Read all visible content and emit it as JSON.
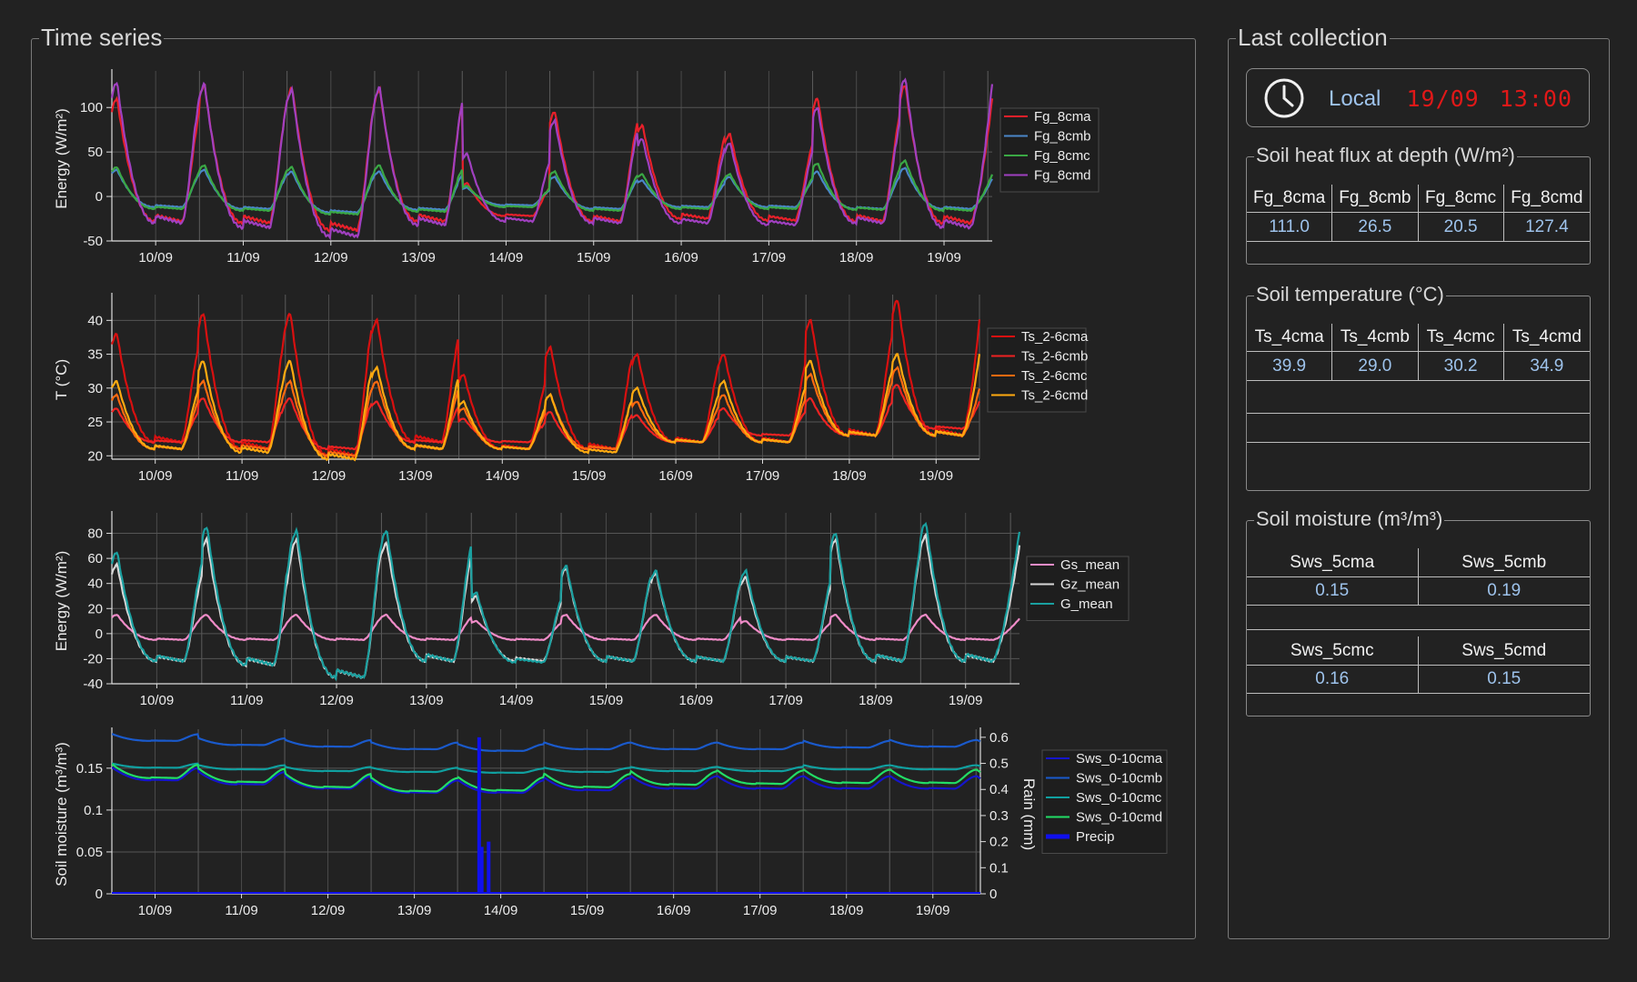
{
  "panels": {
    "time_series_title": "Time series",
    "last_collection_title": "Last collection"
  },
  "clock": {
    "label": "Local",
    "date": "19/09",
    "time": "13:00",
    "icon": "clock-icon"
  },
  "heat_flux": {
    "title": "Soil heat flux at depth (W/m²)",
    "headers": [
      "Fg_8cma",
      "Fg_8cmb",
      "Fg_8cmc",
      "Fg_8cmd"
    ],
    "values": [
      "111.0",
      "26.5",
      "20.5",
      "127.4"
    ]
  },
  "soil_temp": {
    "title": "Soil temperature (°C)",
    "headers": [
      "Ts_4cma",
      "Ts_4cmb",
      "Ts_4cmc",
      "Ts_4cmd"
    ],
    "values": [
      "39.9",
      "29.0",
      "30.2",
      "34.9"
    ]
  },
  "soil_moist": {
    "title": "Soil moisture (m³/m³)",
    "headers_a": [
      "Sws_5cma",
      "Sws_5cmb"
    ],
    "values_a": [
      "0.15",
      "0.19"
    ],
    "headers_b": [
      "Sws_5cmc",
      "Sws_5cmd"
    ],
    "values_b": [
      "0.16",
      "0.15"
    ]
  },
  "chart_data": [
    {
      "type": "line",
      "ylabel": "Energy (W/m²)",
      "ylim": [
        -50,
        135
      ],
      "yticks": [
        -50,
        0,
        50,
        100
      ],
      "x_ticks": [
        "10/09",
        "11/09",
        "12/09",
        "13/09",
        "14/09",
        "15/09",
        "16/09",
        "17/09",
        "18/09",
        "19/09"
      ],
      "x_range_days": [
        9.5,
        19.55
      ],
      "legend": "right",
      "series": [
        {
          "name": "Fg_8cma",
          "color": "#e8202a",
          "peaks": [
            110,
            125,
            122,
            120,
            15,
            95,
            80,
            70,
            110,
            125
          ],
          "troughs": [
            -28,
            -30,
            -38,
            -28,
            -22,
            -28,
            -25,
            -27,
            -28,
            -30
          ],
          "end": 110
        },
        {
          "name": "Fg_8cmb",
          "color": "#4a86c8",
          "peaks": [
            30,
            30,
            28,
            28,
            10,
            22,
            18,
            22,
            28,
            32
          ],
          "troughs": [
            -12,
            -14,
            -18,
            -15,
            -10,
            -14,
            -12,
            -12,
            -14,
            -14
          ],
          "end": 20
        },
        {
          "name": "Fg_8cmc",
          "color": "#3aa844",
          "peaks": [
            33,
            35,
            33,
            35,
            12,
            28,
            25,
            25,
            37,
            40
          ],
          "troughs": [
            -14,
            -16,
            -20,
            -17,
            -12,
            -16,
            -14,
            -14,
            -15,
            -16
          ],
          "end": 25
        },
        {
          "name": "Fg_8cmd",
          "color": "#a040c0",
          "peaks": [
            128,
            126,
            120,
            122,
            48,
            85,
            65,
            60,
            100,
            132
          ],
          "troughs": [
            -30,
            -35,
            -45,
            -32,
            -28,
            -30,
            -30,
            -32,
            -30,
            -35
          ],
          "end": 127
        }
      ]
    },
    {
      "type": "line",
      "ylabel": "T (°C)",
      "ylim": [
        19.5,
        43
      ],
      "yticks": [
        20,
        25,
        30,
        35,
        40
      ],
      "x_ticks": [
        "10/09",
        "11/09",
        "12/09",
        "13/09",
        "14/09",
        "15/09",
        "16/09",
        "17/09",
        "18/09",
        "19/09"
      ],
      "x_range_days": [
        9.5,
        19.5
      ],
      "legend": "right",
      "series": [
        {
          "name": "Ts_2-6cma",
          "color": "#d81010",
          "peaks": [
            38,
            41,
            41,
            40,
            32,
            36,
            35,
            35,
            40,
            43
          ],
          "troughs": [
            22,
            21,
            20,
            22,
            21,
            21,
            22,
            22,
            23,
            23
          ],
          "end": 40
        },
        {
          "name": "Ts_2-6cmb",
          "color": "#ee2222",
          "peaks": [
            27,
            28.5,
            28.5,
            28,
            25.5,
            26.5,
            26,
            27,
            28.5,
            30.5
          ],
          "troughs": [
            22,
            22,
            21,
            22,
            22,
            21,
            22,
            23,
            23,
            24
          ],
          "end": 28
        },
        {
          "name": "Ts_2-6cmc",
          "color": "#ff6a10",
          "peaks": [
            29,
            31,
            31,
            31,
            27,
            29,
            28,
            29,
            32,
            33
          ],
          "troughs": [
            21,
            21,
            20,
            21,
            21,
            21,
            22,
            22,
            23,
            23
          ],
          "end": 30
        },
        {
          "name": "Ts_2-6cmd",
          "color": "#ffaa10",
          "peaks": [
            31,
            34,
            34,
            33,
            28,
            29,
            30,
            31,
            34,
            35
          ],
          "troughs": [
            21,
            20.5,
            19.5,
            21,
            21,
            20.5,
            22,
            22,
            23,
            23
          ],
          "end": 35
        }
      ]
    },
    {
      "type": "line",
      "ylabel": "Energy (W/m²)",
      "ylim": [
        -40,
        92
      ],
      "yticks": [
        -40,
        -20,
        0,
        20,
        40,
        60,
        80
      ],
      "x_ticks": [
        "10/09",
        "11/09",
        "12/09",
        "13/09",
        "14/09",
        "15/09",
        "16/09",
        "17/09",
        "18/09",
        "19/09"
      ],
      "x_range_days": [
        9.5,
        19.6
      ],
      "legend": "right",
      "series": [
        {
          "name": "Gs_mean",
          "color": "#f08cc8",
          "peaks": [
            15,
            15,
            15,
            15,
            10,
            15,
            15,
            10,
            15,
            15
          ],
          "troughs": [
            -5,
            -5,
            -5,
            -5,
            -5,
            -5,
            -5,
            -5,
            -5,
            -5
          ],
          "end": 12
        },
        {
          "name": "Gz_mean",
          "color": "#d8d8d8",
          "peaks": [
            55,
            75,
            75,
            72,
            30,
            52,
            48,
            45,
            75,
            78
          ],
          "troughs": [
            -22,
            -25,
            -35,
            -22,
            -22,
            -22,
            -22,
            -22,
            -22,
            -22
          ],
          "end": 70
        },
        {
          "name": "G_mean",
          "color": "#1aa0a0",
          "peaks": [
            65,
            85,
            82,
            82,
            33,
            54,
            50,
            50,
            80,
            88
          ],
          "troughs": [
            -22,
            -25,
            -35,
            -22,
            -23,
            -22,
            -22,
            -22,
            -22,
            -22
          ],
          "end": 82
        }
      ]
    },
    {
      "type": "line",
      "ylabel": "Soil moisture  (m³/m³)",
      "y2label": "Rain (mm)",
      "ylim": [
        0,
        0.19
      ],
      "yticks": [
        0,
        0.05,
        0.1,
        0.15
      ],
      "y2lim": [
        0,
        0.61
      ],
      "y2ticks": [
        0,
        0.1,
        0.2,
        0.3,
        0.4,
        0.5,
        0.6
      ],
      "x_ticks": [
        "10/09",
        "11/09",
        "12/09",
        "13/09",
        "14/09",
        "15/09",
        "16/09",
        "17/09",
        "18/09",
        "19/09"
      ],
      "x_range_days": [
        9.5,
        19.55
      ],
      "legend": "right",
      "series": [
        {
          "name": "Sws_0-10cma",
          "color": "#1515cc",
          "base": [
            0.14,
            0.135,
            0.13,
            0.125,
            0.125,
            0.128,
            0.13,
            0.13,
            0.13,
            0.13
          ],
          "amp": 0.015
        },
        {
          "name": "Sws_0-10cmb",
          "color": "#1a5acc",
          "base": [
            0.185,
            0.18,
            0.178,
            0.175,
            0.173,
            0.175,
            0.175,
            0.175,
            0.177,
            0.178
          ],
          "amp": 0.008
        },
        {
          "name": "Sws_0-10cmc",
          "color": "#10a0a0",
          "base": [
            0.152,
            0.15,
            0.148,
            0.147,
            0.146,
            0.147,
            0.148,
            0.148,
            0.15,
            0.15
          ],
          "amp": 0.005
        },
        {
          "name": "Sws_0-10cmd",
          "color": "#22dd66",
          "base": [
            0.143,
            0.138,
            0.132,
            0.127,
            0.128,
            0.132,
            0.135,
            0.136,
            0.137,
            0.137
          ],
          "amp": 0.016
        },
        {
          "name": "Precip",
          "color": "#1010ee",
          "bars": [
            {
              "day": 13.75,
              "mm": 0.6
            },
            {
              "day": 13.78,
              "mm": 0.18
            },
            {
              "day": 13.86,
              "mm": 0.2
            }
          ]
        }
      ]
    }
  ]
}
